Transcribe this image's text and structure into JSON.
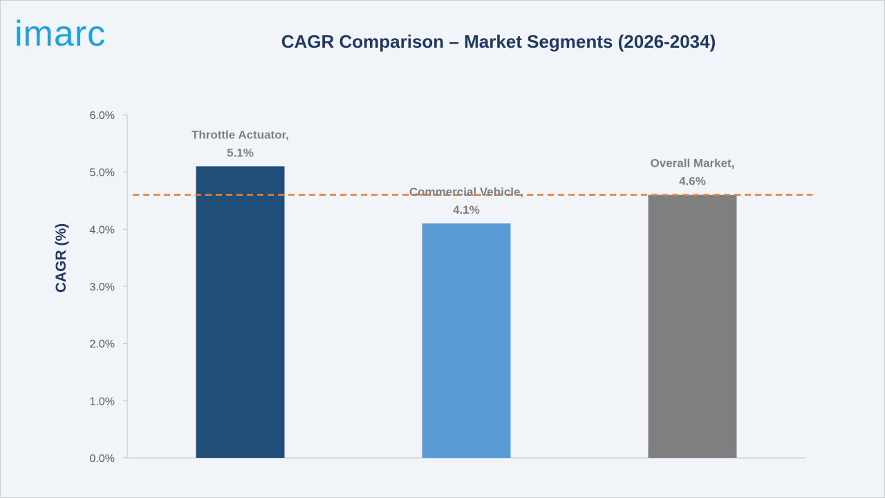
{
  "logo": {
    "text": "imarc",
    "color": "#1aa3de"
  },
  "chart_data": {
    "type": "bar",
    "title": "CAGR Comparison – Market Segments (2026-2034)",
    "ylabel": "CAGR (%)",
    "xlabel": "",
    "ylim": [
      0,
      6
    ],
    "yticks": [
      {
        "value": 0,
        "label": "0.0%"
      },
      {
        "value": 1,
        "label": "1.0%"
      },
      {
        "value": 2,
        "label": "2.0%"
      },
      {
        "value": 3,
        "label": "3.0%"
      },
      {
        "value": 4,
        "label": "4.0%"
      },
      {
        "value": 5,
        "label": "5.0%"
      },
      {
        "value": 6,
        "label": "6.0%"
      }
    ],
    "categories": [
      "Throttle Actuator",
      "Commercial Vehicle",
      "Overall Market"
    ],
    "values": [
      5.1,
      4.1,
      4.6
    ],
    "data_labels": [
      [
        "Throttle Actuator,",
        "5.1%"
      ],
      [
        "Commercial Vehicle,",
        "4.1%"
      ],
      [
        "Overall Market,",
        "4.6%"
      ]
    ],
    "colors": [
      "#1f4e79",
      "#5b9bd5",
      "#7f7f7f"
    ],
    "reference_line": {
      "value": 4.6,
      "color": "#ed7d31",
      "style": "dashed"
    },
    "grid": false,
    "legend": "none"
  }
}
